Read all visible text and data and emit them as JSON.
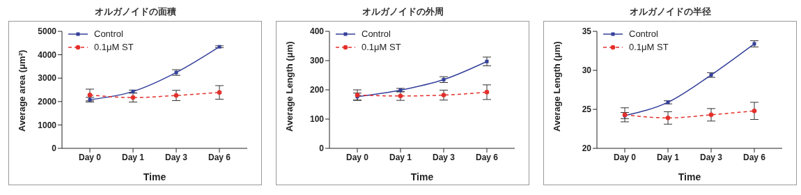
{
  "chart_data": [
    {
      "type": "line",
      "title": "オルガノイドの面積",
      "xlabel": "Time",
      "ylabel": "Average area (μm²)",
      "categories": [
        "Day 0",
        "Day 1",
        "Day 3",
        "Day 6"
      ],
      "ylim": [
        0,
        5000
      ],
      "yticks": [
        0,
        1000,
        2000,
        3000,
        4000,
        5000
      ],
      "grid": false,
      "legend": "top left",
      "series": [
        {
          "name": "Control",
          "color": "#34409a",
          "marker": "square",
          "line_style": "solid",
          "values": [
            2080,
            2430,
            3240,
            4340
          ],
          "errors": [
            100,
            60,
            120,
            40
          ]
        },
        {
          "name": "0.1μM ST",
          "color": "#e3302b",
          "marker": "circle",
          "line_style": "dashed",
          "values": [
            2280,
            2170,
            2260,
            2390
          ],
          "errors": [
            250,
            190,
            220,
            290
          ]
        }
      ]
    },
    {
      "type": "line",
      "title": "オルガノイドの外周",
      "xlabel": "Time",
      "ylabel": "Average Length (μm)",
      "categories": [
        "Day 0",
        "Day 1",
        "Day 3",
        "Day 6"
      ],
      "ylim": [
        0,
        400
      ],
      "yticks": [
        0,
        100,
        200,
        300,
        400
      ],
      "grid": false,
      "legend": "top left",
      "series": [
        {
          "name": "Control",
          "color": "#34409a",
          "marker": "square",
          "line_style": "solid",
          "values": [
            177,
            199,
            235,
            297
          ],
          "errors": [
            12,
            6,
            10,
            15
          ]
        },
        {
          "name": "0.1μM ST",
          "color": "#e3302b",
          "marker": "circle",
          "line_style": "dashed",
          "values": [
            182,
            179,
            182,
            192
          ],
          "errors": [
            18,
            15,
            17,
            25
          ]
        }
      ]
    },
    {
      "type": "line",
      "title": "オルガノイドの半径",
      "xlabel": "Time",
      "ylabel": "Average Length (μm)",
      "categories": [
        "Day 0",
        "Day 1",
        "Day 3",
        "Day 6"
      ],
      "ylim": [
        20,
        35
      ],
      "yticks": [
        20,
        25,
        30,
        35
      ],
      "grid": false,
      "legend": "top left",
      "series": [
        {
          "name": "Control",
          "color": "#34409a",
          "marker": "square",
          "line_style": "solid",
          "values": [
            24.2,
            25.9,
            29.4,
            33.4
          ],
          "errors": [
            0.4,
            0.2,
            0.3,
            0.4
          ]
        },
        {
          "name": "0.1μM ST",
          "color": "#e3302b",
          "marker": "circle",
          "line_style": "dashed",
          "values": [
            24.3,
            23.9,
            24.3,
            24.8
          ],
          "errors": [
            0.9,
            0.8,
            0.8,
            1.1
          ]
        }
      ]
    }
  ]
}
